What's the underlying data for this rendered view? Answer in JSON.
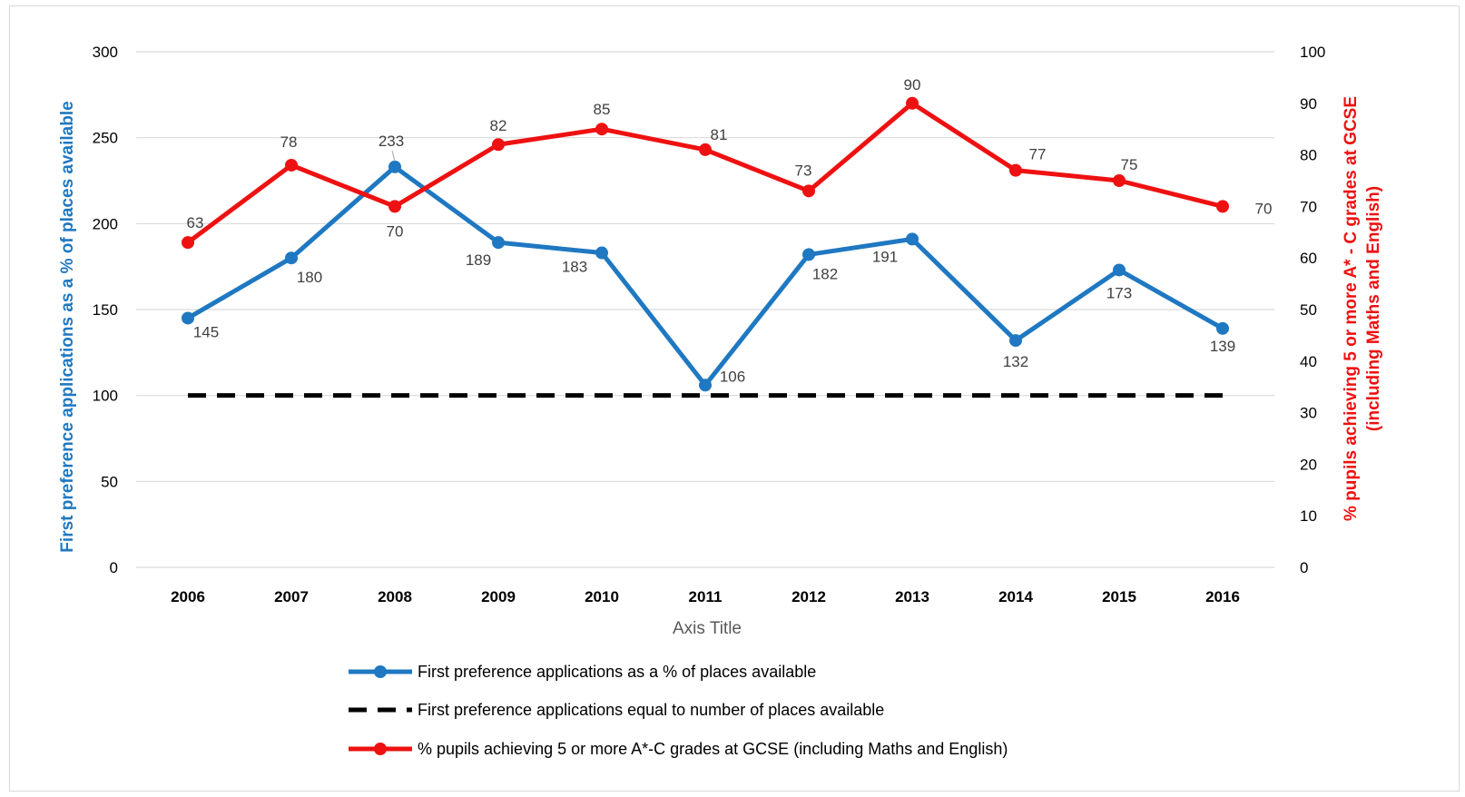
{
  "colors": {
    "blue": "#1f78c1",
    "red": "#ee1111",
    "black": "#000000",
    "grid": "#d9d9d9",
    "label": "#404040"
  },
  "chart_data": {
    "type": "line",
    "categories": [
      "2006",
      "2007",
      "2008",
      "2009",
      "2010",
      "2011",
      "2012",
      "2013",
      "2014",
      "2015",
      "2016"
    ],
    "xlabel": "Axis Title",
    "ylabel": "First preference applications as a % of places available",
    "y2label_line1": "% pupils achieving 5 or more A* - C grades at GCSE",
    "y2label_line2": "(including Maths and English)",
    "ylim": [
      0,
      300
    ],
    "y2lim": [
      0,
      100
    ],
    "yticks": [
      0,
      50,
      100,
      150,
      200,
      250,
      300
    ],
    "y2ticks": [
      0,
      10,
      20,
      30,
      40,
      50,
      60,
      70,
      80,
      90,
      100
    ],
    "grid": true,
    "legend_position": "bottom",
    "series": [
      {
        "name": "First preference applications as a % of places available",
        "axis": "left",
        "color": "#1f78c1",
        "style": "solid-markers",
        "values": [
          145,
          180,
          233,
          189,
          183,
          106,
          182,
          191,
          132,
          173,
          139
        ]
      },
      {
        "name": "First preference applications equal to number of places available",
        "axis": "left",
        "color": "#000000",
        "style": "dashed",
        "values": [
          100,
          100,
          100,
          100,
          100,
          100,
          100,
          100,
          100,
          100,
          100
        ]
      },
      {
        "name": "% pupils achieving 5 or more A*-C grades at GCSE (including Maths and English)",
        "axis": "right",
        "color": "#ee1111",
        "style": "solid-markers",
        "values": [
          63,
          78,
          70,
          82,
          85,
          81,
          73,
          90,
          77,
          75,
          70
        ]
      }
    ]
  }
}
